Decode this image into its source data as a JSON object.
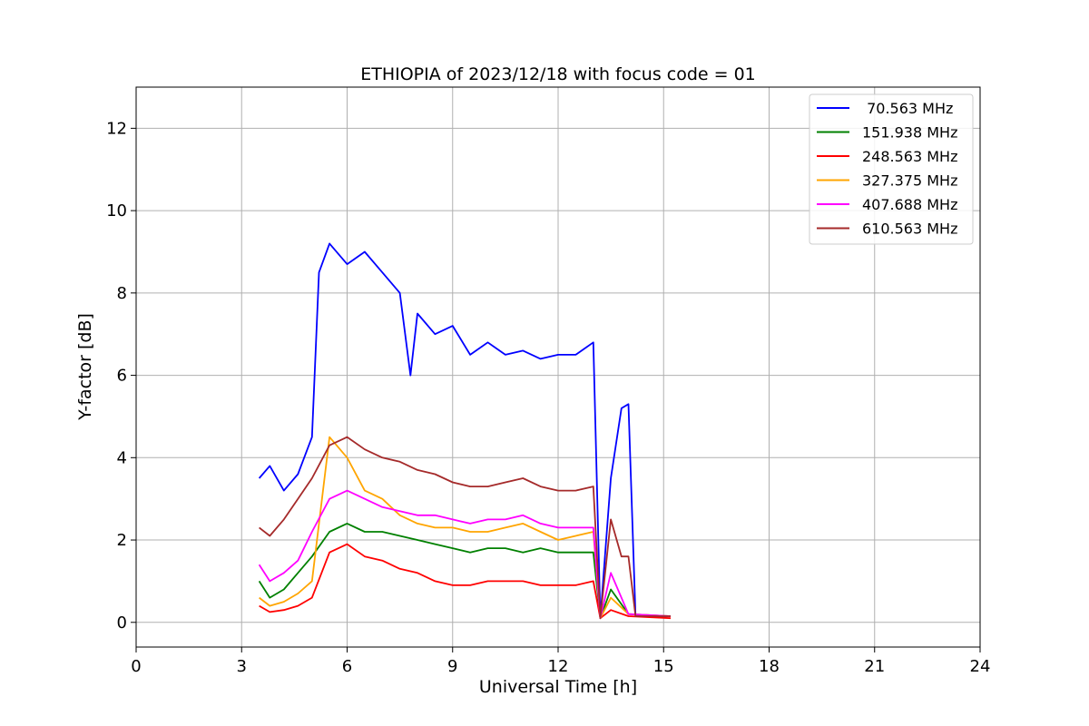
{
  "chart_data": {
    "type": "line",
    "title": "ETHIOPIA of 2023/12/18 with focus code = 01",
    "xlabel": "Universal Time [h]",
    "ylabel": "Y-factor [dB]",
    "xlim": [
      0,
      24
    ],
    "ylim": [
      -0.6,
      13
    ],
    "xticks": [
      "0",
      "3",
      "6",
      "9",
      "12",
      "15",
      "18",
      "21",
      "24"
    ],
    "yticks": [
      "0",
      "2",
      "4",
      "6",
      "8",
      "10",
      "12"
    ],
    "grid": true,
    "legend_position": "top-right",
    "series": [
      {
        "name": " 70.563 MHz",
        "color": "#0000ff",
        "x": [
          3.5,
          3.8,
          4.2,
          4.6,
          5.0,
          5.2,
          5.5,
          6.0,
          6.5,
          7.0,
          7.5,
          7.8,
          8.0,
          8.5,
          9.0,
          9.5,
          10.0,
          10.5,
          11.0,
          11.5,
          12.0,
          12.5,
          13.0,
          13.2,
          13.5,
          13.8,
          14.0,
          14.2,
          15.2
        ],
        "y": [
          3.5,
          3.8,
          3.2,
          3.6,
          4.5,
          8.5,
          9.2,
          8.7,
          9.0,
          8.5,
          8.0,
          6.0,
          7.5,
          7.0,
          7.2,
          6.5,
          6.8,
          6.5,
          6.6,
          6.4,
          6.5,
          6.5,
          6.8,
          0.1,
          3.5,
          5.2,
          5.3,
          0.15,
          0.15
        ]
      },
      {
        "name": "151.938 MHz",
        "color": "#008000",
        "x": [
          3.5,
          3.8,
          4.2,
          4.6,
          5.0,
          5.5,
          6.0,
          6.5,
          7.0,
          7.5,
          8.0,
          8.5,
          9.0,
          9.5,
          10.0,
          10.5,
          11.0,
          11.5,
          12.0,
          12.5,
          13.0,
          13.2,
          13.5,
          14.0,
          15.2
        ],
        "y": [
          1.0,
          0.6,
          0.8,
          1.2,
          1.6,
          2.2,
          2.4,
          2.2,
          2.2,
          2.1,
          2.0,
          1.9,
          1.8,
          1.7,
          1.8,
          1.8,
          1.7,
          1.8,
          1.7,
          1.7,
          1.7,
          0.1,
          0.8,
          0.2,
          0.15
        ]
      },
      {
        "name": "248.563 MHz",
        "color": "#ff0000",
        "x": [
          3.5,
          3.8,
          4.2,
          4.6,
          5.0,
          5.5,
          6.0,
          6.5,
          7.0,
          7.5,
          8.0,
          8.5,
          9.0,
          9.5,
          10.0,
          10.5,
          11.0,
          11.5,
          12.0,
          12.5,
          13.0,
          13.2,
          13.5,
          14.0,
          15.2
        ],
        "y": [
          0.4,
          0.25,
          0.3,
          0.4,
          0.6,
          1.7,
          1.9,
          1.6,
          1.5,
          1.3,
          1.2,
          1.0,
          0.9,
          0.9,
          1.0,
          1.0,
          1.0,
          0.9,
          0.9,
          0.9,
          1.0,
          0.1,
          0.3,
          0.15,
          0.1
        ]
      },
      {
        "name": "327.375 MHz",
        "color": "#ffa500",
        "x": [
          3.5,
          3.8,
          4.2,
          4.6,
          5.0,
          5.5,
          6.0,
          6.5,
          7.0,
          7.5,
          8.0,
          8.5,
          9.0,
          9.5,
          10.0,
          10.5,
          11.0,
          11.5,
          12.0,
          12.5,
          13.0,
          13.2,
          13.5,
          14.0,
          15.2
        ],
        "y": [
          0.6,
          0.4,
          0.5,
          0.7,
          1.0,
          4.5,
          4.0,
          3.2,
          3.0,
          2.6,
          2.4,
          2.3,
          2.3,
          2.2,
          2.2,
          2.3,
          2.4,
          2.2,
          2.0,
          2.1,
          2.2,
          0.1,
          0.6,
          0.2,
          0.15
        ]
      },
      {
        "name": "407.688 MHz",
        "color": "#ff00ff",
        "x": [
          3.5,
          3.8,
          4.2,
          4.6,
          5.0,
          5.5,
          6.0,
          6.5,
          7.0,
          7.5,
          8.0,
          8.5,
          9.0,
          9.5,
          10.0,
          10.5,
          11.0,
          11.5,
          12.0,
          12.5,
          13.0,
          13.2,
          13.5,
          14.0,
          15.2
        ],
        "y": [
          1.4,
          1.0,
          1.2,
          1.5,
          2.2,
          3.0,
          3.2,
          3.0,
          2.8,
          2.7,
          2.6,
          2.6,
          2.5,
          2.4,
          2.5,
          2.5,
          2.6,
          2.4,
          2.3,
          2.3,
          2.3,
          0.1,
          1.2,
          0.2,
          0.15
        ]
      },
      {
        "name": "610.563 MHz",
        "color": "#a52a2a",
        "x": [
          3.5,
          3.8,
          4.2,
          4.6,
          5.0,
          5.5,
          6.0,
          6.5,
          7.0,
          7.5,
          8.0,
          8.5,
          9.0,
          9.5,
          10.0,
          10.5,
          11.0,
          11.5,
          12.0,
          12.5,
          13.0,
          13.2,
          13.5,
          13.8,
          14.0,
          14.2,
          15.2
        ],
        "y": [
          2.3,
          2.1,
          2.5,
          3.0,
          3.5,
          4.3,
          4.5,
          4.2,
          4.0,
          3.9,
          3.7,
          3.6,
          3.4,
          3.3,
          3.3,
          3.4,
          3.5,
          3.3,
          3.2,
          3.2,
          3.3,
          0.1,
          2.5,
          1.6,
          1.6,
          0.15,
          0.15
        ]
      }
    ]
  }
}
